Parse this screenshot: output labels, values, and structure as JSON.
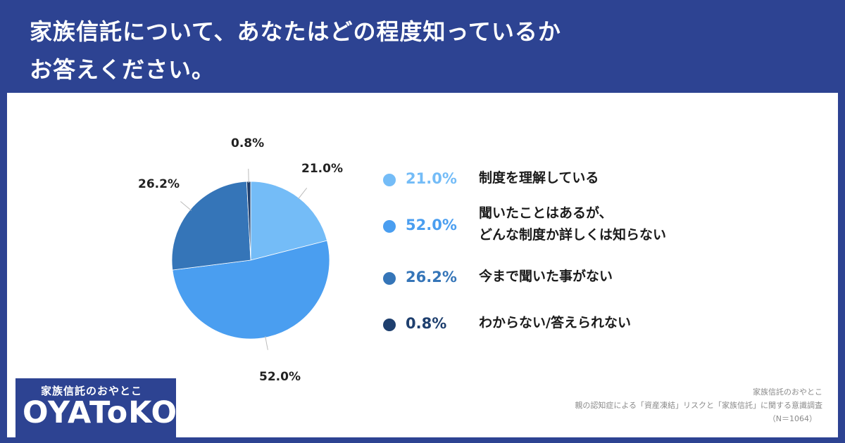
{
  "header": {
    "title_line1": "家族信託について、あなたはどの程度知っているか",
    "title_line2": "お答えください。"
  },
  "chart_data": {
    "type": "pie",
    "start_angle_deg": 0,
    "direction": "clockwise",
    "slices": [
      {
        "label": "制度を理解している",
        "value": 21.0,
        "display": "21.0%",
        "color": "#74bcf7"
      },
      {
        "label": "聞いたことはあるが、どんな制度か詳しくは知らない",
        "value": 52.0,
        "display": "52.0%",
        "color": "#4a9ef0"
      },
      {
        "label": "今まで聞いた事がない",
        "value": 26.2,
        "display": "26.2%",
        "color": "#3575b8"
      },
      {
        "label": "わからない/答えられない",
        "value": 0.8,
        "display": "0.8%",
        "color": "#1e3f6e"
      }
    ]
  },
  "legend": {
    "items": [
      {
        "pct": "21.0%",
        "color": "#74bcf7",
        "lines": [
          "制度を理解している"
        ]
      },
      {
        "pct": "52.0%",
        "color": "#4a9ef0",
        "lines": [
          "聞いたことはあるが、",
          "どんな制度か詳しくは知らない"
        ]
      },
      {
        "pct": "26.2%",
        "color": "#3575b8",
        "lines": [
          "今まで聞いた事がない"
        ]
      },
      {
        "pct": "0.8%",
        "color": "#1e3f6e",
        "lines": [
          "わからない/答えられない"
        ]
      }
    ]
  },
  "source": {
    "line1": "家族信託のおやとこ",
    "line2": "親の認知症による「資産凍結」リスクと「家族信託」に関する意識調査",
    "line3": "（N＝1064）"
  },
  "logo": {
    "sub": "家族信託のおやとこ",
    "main": "OYAToKO"
  }
}
